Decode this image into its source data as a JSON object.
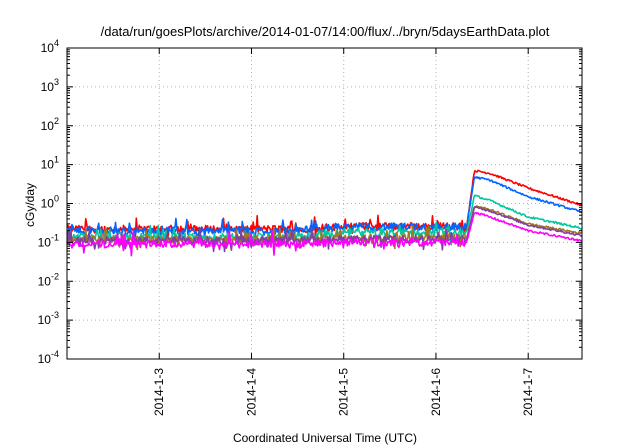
{
  "chart_data": {
    "type": "line",
    "title": "/data/run/goesPlots/archive/2014-01-07/14:00/flux/../bryn/5daysEarthData.plot",
    "xlabel": "Coordinated Universal Time (UTC)",
    "ylabel": "cGy/day",
    "yscale": "log",
    "ylim": [
      0.0001,
      10000
    ],
    "xlim": [
      "2014-01-02 00:00",
      "2014-01-07 14:00"
    ],
    "grid": true,
    "legend": "none",
    "xticks": [
      "2014-1-3",
      "2014-1-4",
      "2014-1-5",
      "2014-1-6",
      "2014-1-7"
    ],
    "yticks": [
      {
        "value": 0.0001,
        "base": "10",
        "exp": "-4"
      },
      {
        "value": 0.001,
        "base": "10",
        "exp": "-3"
      },
      {
        "value": 0.01,
        "base": "10",
        "exp": "-2"
      },
      {
        "value": 0.1,
        "base": "10",
        "exp": "-1"
      },
      {
        "value": 1,
        "base": "10",
        "exp": "0"
      },
      {
        "value": 10,
        "base": "10",
        "exp": "1"
      },
      {
        "value": 100,
        "base": "10",
        "exp": "2"
      },
      {
        "value": 1000,
        "base": "10",
        "exp": "3"
      },
      {
        "value": 10000,
        "base": "10",
        "exp": "4"
      }
    ],
    "series": [
      {
        "color": "#ff0000",
        "points": [
          [
            "2014-01-02 00:00",
            0.22
          ],
          [
            "2014-01-04 12:00",
            0.22
          ],
          [
            "2014-01-05 00:00",
            0.26
          ],
          [
            "2014-01-06 08:00",
            0.26
          ],
          [
            "2014-01-06 10:00",
            7.0
          ],
          [
            "2014-01-06 14:00",
            6.0
          ],
          [
            "2014-01-07 00:00",
            2.5
          ],
          [
            "2014-01-07 14:00",
            0.9
          ]
        ]
      },
      {
        "color": "#0066ff",
        "points": [
          [
            "2014-01-02 00:00",
            0.2
          ],
          [
            "2014-01-04 12:00",
            0.2
          ],
          [
            "2014-01-05 00:00",
            0.25
          ],
          [
            "2014-01-06 08:00",
            0.25
          ],
          [
            "2014-01-06 10:00",
            4.8
          ],
          [
            "2014-01-06 14:00",
            4.0
          ],
          [
            "2014-01-07 00:00",
            1.5
          ],
          [
            "2014-01-07 14:00",
            0.6
          ]
        ]
      },
      {
        "color": "#00c8a0",
        "points": [
          [
            "2014-01-02 00:00",
            0.14
          ],
          [
            "2014-01-04 12:00",
            0.14
          ],
          [
            "2014-01-05 00:00",
            0.18
          ],
          [
            "2014-01-06 08:00",
            0.18
          ],
          [
            "2014-01-06 10:00",
            1.6
          ],
          [
            "2014-01-06 14:00",
            1.2
          ],
          [
            "2014-01-07 00:00",
            0.45
          ],
          [
            "2014-01-07 14:00",
            0.23
          ]
        ]
      },
      {
        "color": "#a07820",
        "points": [
          [
            "2014-01-02 00:00",
            0.12
          ],
          [
            "2014-01-04 12:00",
            0.12
          ],
          [
            "2014-01-05 00:00",
            0.13
          ],
          [
            "2014-01-06 08:00",
            0.13
          ],
          [
            "2014-01-06 10:00",
            0.85
          ],
          [
            "2014-01-06 14:00",
            0.7
          ],
          [
            "2014-01-07 00:00",
            0.3
          ],
          [
            "2014-01-07 14:00",
            0.17
          ]
        ]
      },
      {
        "color": "#8040a0",
        "points": [
          [
            "2014-01-02 00:00",
            0.11
          ],
          [
            "2014-01-04 12:00",
            0.11
          ],
          [
            "2014-01-05 00:00",
            0.12
          ],
          [
            "2014-01-06 08:00",
            0.12
          ],
          [
            "2014-01-06 10:00",
            0.8
          ],
          [
            "2014-01-06 14:00",
            0.65
          ],
          [
            "2014-01-07 00:00",
            0.28
          ],
          [
            "2014-01-07 14:00",
            0.15
          ]
        ]
      },
      {
        "color": "#ff00ff",
        "points": [
          [
            "2014-01-02 00:00",
            0.09
          ],
          [
            "2014-01-04 12:00",
            0.09
          ],
          [
            "2014-01-05 00:00",
            0.1
          ],
          [
            "2014-01-06 08:00",
            0.1
          ],
          [
            "2014-01-06 10:00",
            0.6
          ],
          [
            "2014-01-06 14:00",
            0.45
          ],
          [
            "2014-01-07 00:00",
            0.2
          ],
          [
            "2014-01-07 14:00",
            0.11
          ]
        ]
      }
    ]
  }
}
